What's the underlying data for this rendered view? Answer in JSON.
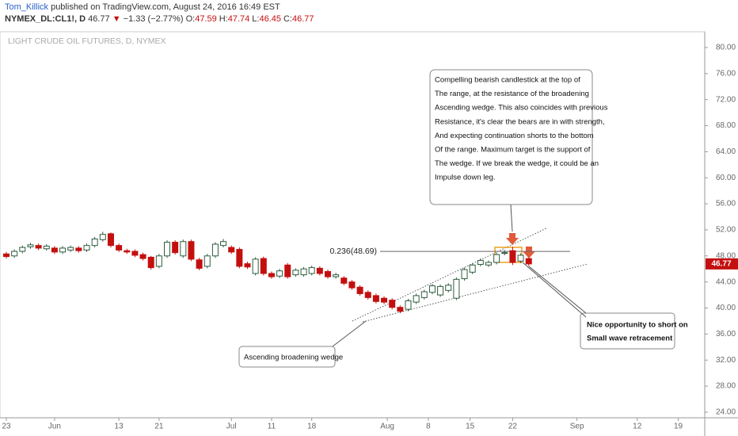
{
  "header": {
    "author": "Tom_Killick",
    "published": " published on TradingView.com, August 24, 2016 16:49 EST",
    "symbol": "NYMEX_DL:CL1!, D",
    "last": "46.77",
    "arrow": "▼",
    "change": "−1.33 (−2.77%)",
    "ohlc": [
      {
        "label": "O:",
        "value": "47.59"
      },
      {
        "label": "H:",
        "value": "47.74"
      },
      {
        "label": "L:",
        "value": "46.45"
      },
      {
        "label": "C:",
        "value": "46.77"
      }
    ]
  },
  "chart_data": {
    "type": "candlestick",
    "title": "LIGHT CRUDE OIL FUTURES, D, NYMEX",
    "candles": {
      "open": [
        48.3,
        48.0,
        48.7,
        49.4,
        49.6,
        49.1,
        49.2,
        48.6,
        48.9,
        49.2,
        48.9,
        49.6,
        50.5,
        51.4,
        49.6,
        48.8,
        48.7,
        48.2,
        47.8,
        46.4,
        48.0,
        50.1,
        48.0,
        50.2,
        47.4,
        46.4,
        48.0,
        49.6,
        49.3,
        49.0,
        46.8,
        45.3,
        47.6,
        45.3,
        44.9,
        46.6,
        45.1,
        45.1,
        45.3,
        46.1,
        45.6,
        44.8,
        44.6,
        44.0,
        43.2,
        42.4,
        41.9,
        41.5,
        41.2,
        40.1,
        39.8,
        40.9,
        41.6,
        42.4,
        42.0,
        42.7,
        41.5,
        44.5,
        45.5,
        46.7,
        46.6,
        47.0,
        48.4,
        48.8,
        47.2,
        47.59
      ],
      "high": [
        48.6,
        49.0,
        49.6,
        50.0,
        49.9,
        49.8,
        49.5,
        49.5,
        49.6,
        49.5,
        49.9,
        50.9,
        51.7,
        51.6,
        49.9,
        49.1,
        49.0,
        48.5,
        48.0,
        48.3,
        50.4,
        50.4,
        50.5,
        50.5,
        47.7,
        48.3,
        50.1,
        50.6,
        49.6,
        49.3,
        47.1,
        47.8,
        47.9,
        45.6,
        46.0,
        46.9,
        46.1,
        46.3,
        46.5,
        46.4,
        45.9,
        45.4,
        44.9,
        44.3,
        43.5,
        42.7,
        42.2,
        41.8,
        41.5,
        40.4,
        41.4,
        42.2,
        42.8,
        43.7,
        43.6,
        43.8,
        44.7,
        46.2,
        46.9,
        47.6,
        47.3,
        48.5,
        48.9,
        49.4,
        48.4,
        47.74
      ],
      "low": [
        47.6,
        47.7,
        48.4,
        49.1,
        48.9,
        48.8,
        48.3,
        48.3,
        48.6,
        48.5,
        48.6,
        49.3,
        50.2,
        49.3,
        48.6,
        48.3,
        47.8,
        47.3,
        45.9,
        46.1,
        47.7,
        48.2,
        47.7,
        47.2,
        45.8,
        46.1,
        47.7,
        49.3,
        48.3,
        46.1,
        46.0,
        45.0,
        45.0,
        44.5,
        44.6,
        44.5,
        44.8,
        44.8,
        45.0,
        45.0,
        44.5,
        44.5,
        43.5,
        42.8,
        41.9,
        41.3,
        40.7,
        40.6,
        39.8,
        39.2,
        39.5,
        40.6,
        41.3,
        42.1,
        41.7,
        42.4,
        41.2,
        44.2,
        45.2,
        46.4,
        46.3,
        46.7,
        48.1,
        46.6,
        46.9,
        46.45
      ],
      "close": [
        47.9,
        48.7,
        49.3,
        49.7,
        49.2,
        49.5,
        48.6,
        49.2,
        49.3,
        48.8,
        49.6,
        50.6,
        51.3,
        49.6,
        48.9,
        48.6,
        48.1,
        47.6,
        46.2,
        48.0,
        50.1,
        48.5,
        50.2,
        47.5,
        46.1,
        48.0,
        49.8,
        50.2,
        48.6,
        46.4,
        46.3,
        47.5,
        45.3,
        44.8,
        45.7,
        44.8,
        45.8,
        46.0,
        46.2,
        45.3,
        44.8,
        45.1,
        43.8,
        43.1,
        42.2,
        41.6,
        41.0,
        40.9,
        40.1,
        39.5,
        41.1,
        41.9,
        42.5,
        43.4,
        43.3,
        43.5,
        44.4,
        45.9,
        46.6,
        47.3,
        47.0,
        48.2,
        48.5,
        47.0,
        48.1,
        46.77
      ]
    },
    "up_color": "#ffffff",
    "up_border": "#2f5d3f",
    "down_color": "#c40f0f",
    "xlim": [
      -0.79,
      86.9
    ],
    "xticks": [
      {
        "value": 0,
        "label": "23"
      },
      {
        "value": 6,
        "label": "Jun"
      },
      {
        "value": 14,
        "label": "13"
      },
      {
        "value": 19,
        "label": "21"
      },
      {
        "value": 28,
        "label": "Jul"
      },
      {
        "value": 33,
        "label": "11"
      },
      {
        "value": 38,
        "label": "18"
      },
      {
        "value": 47.4,
        "label": "Aug"
      },
      {
        "value": 52.5,
        "label": "8"
      },
      {
        "value": 57.7,
        "label": "15"
      },
      {
        "value": 63,
        "label": "22"
      },
      {
        "value": 71,
        "label": "Sep"
      },
      {
        "value": 78.5,
        "label": "12"
      },
      {
        "value": 83.6,
        "label": "19"
      }
    ],
    "ylim": [
      23.14,
      82.43
    ],
    "yticks": [
      {
        "value": 24,
        "label": "24.00"
      },
      {
        "value": 28,
        "label": "28.00"
      },
      {
        "value": 32,
        "label": "32.00"
      },
      {
        "value": 36,
        "label": "36.00"
      },
      {
        "value": 40,
        "label": "40.00"
      },
      {
        "value": 44,
        "label": "44.00"
      },
      {
        "value": 48,
        "label": "48.00"
      },
      {
        "value": 52,
        "label": "52.00"
      },
      {
        "value": 56,
        "label": "56.00"
      },
      {
        "value": 60,
        "label": "60.00"
      },
      {
        "value": 64,
        "label": "64.00"
      },
      {
        "value": 68,
        "label": "68.00"
      },
      {
        "value": 72,
        "label": "72.00"
      },
      {
        "value": 76,
        "label": "76.00"
      },
      {
        "value": 80,
        "label": "80.00"
      }
    ],
    "fib": {
      "label": "0.236(48.69)",
      "level": 48.69
    },
    "annotations": {
      "top": [
        "Compelling bearish candlestick at the top of",
        "The range, at the resistance of the broadening",
        "Ascending wedge. This also coincides with previous",
        "Resistance, it's clear the bears are in with strength,",
        "And expecting continuation shorts to the bottom",
        "Of the range. Maximum target is the support of",
        "The wedge. If we break the wedge, it could be an",
        "Impulse down leg."
      ],
      "wedge": [
        "Ascending broadening wedge"
      ],
      "short": [
        "Nice opportunity to short on",
        "Small wave retracement"
      ]
    }
  }
}
